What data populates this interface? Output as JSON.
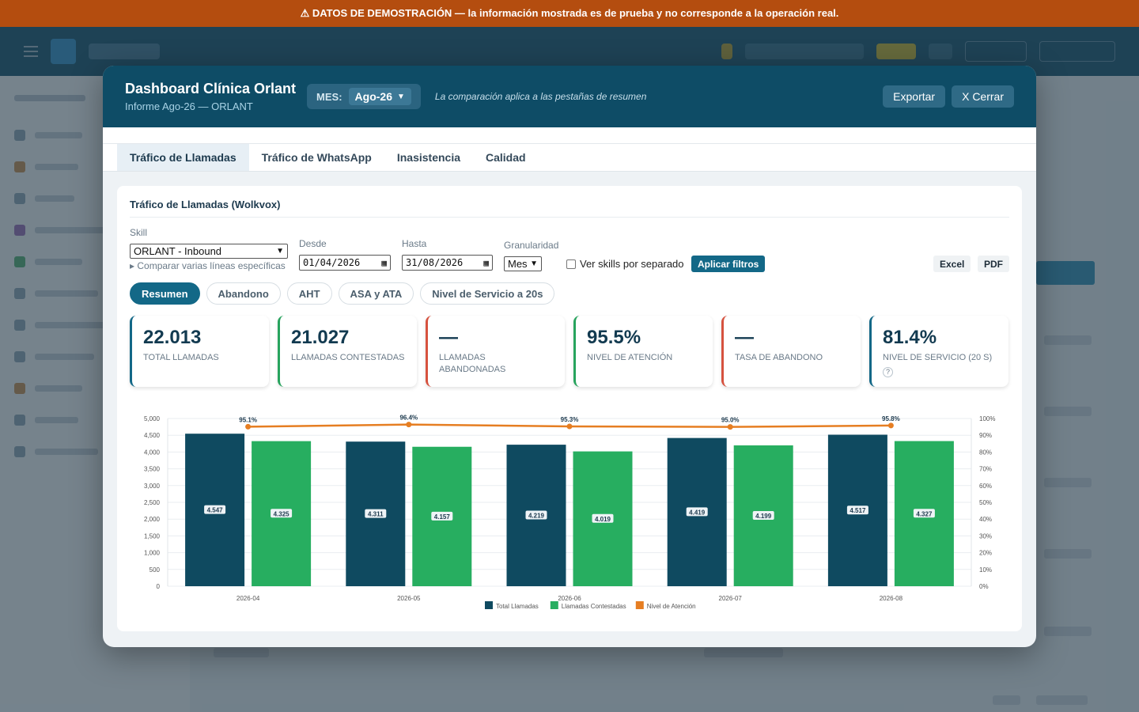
{
  "banner": {
    "text": "⚠ DATOS DE DEMOSTRACIÓN — la información mostrada es de prueba y no corresponde a la operación real."
  },
  "modal": {
    "title": "Dashboard Clínica Orlant",
    "subtitle": "Informe Ago-26 — ORLANT",
    "month_label": "MES:",
    "month_value": "Ago-26",
    "note": "La comparación aplica a las pestañas de resumen",
    "export_label": "Exportar",
    "close_label": "X Cerrar"
  },
  "tabs": [
    {
      "label": "Tráfico de Llamadas",
      "active": true
    },
    {
      "label": "Tráfico de WhatsApp",
      "active": false
    },
    {
      "label": "Inasistencia",
      "active": false
    },
    {
      "label": "Calidad",
      "active": false
    }
  ],
  "panel": {
    "title": "Tráfico de Llamadas (Wolkvox)",
    "filters": {
      "skill_label": "Skill",
      "skill_value": "ORLANT - Inbound",
      "compare_label": "▸ Comparar varias líneas específicas",
      "from_label": "Desde",
      "from_value": "01/04/2026",
      "to_label": "Hasta",
      "to_value": "31/08/2026",
      "granularity_label": "Granularidad",
      "granularity_value": "Mes",
      "separate_label": "Ver skills por separado",
      "apply_label": "Aplicar filtros",
      "excel_label": "Excel",
      "pdf_label": "PDF"
    },
    "subtabs": [
      {
        "label": "Resumen",
        "active": true
      },
      {
        "label": "Abandono",
        "active": false
      },
      {
        "label": "AHT",
        "active": false
      },
      {
        "label": "ASA y ATA",
        "active": false
      },
      {
        "label": "Nivel de Servicio a 20s",
        "active": false
      }
    ],
    "kpis": [
      {
        "value": "22.013",
        "label": "Total llamadas",
        "accent": "#136887"
      },
      {
        "value": "21.027",
        "label": "Llamadas contestadas",
        "accent": "#27a35d"
      },
      {
        "value": "—",
        "label": "Llamadas abandonadas",
        "accent": "#d6523f"
      },
      {
        "value": "95.5%",
        "label": "Nivel de atención",
        "accent": "#27a35d"
      },
      {
        "value": "—",
        "label": "Tasa de abandono",
        "accent": "#d6523f"
      },
      {
        "value": "81.4%",
        "label": "Nivel de servicio (20 s)",
        "accent": "#136887",
        "help": "?"
      }
    ]
  },
  "chart_data": {
    "type": "bar",
    "categories": [
      "2026-04",
      "2026-05",
      "2026-06",
      "2026-07",
      "2026-08"
    ],
    "series": [
      {
        "name": "Total Llamadas",
        "type": "bar",
        "axis": "left",
        "color": "#0f4a60",
        "values": [
          4547,
          4311,
          4219,
          4419,
          4517
        ],
        "labels": [
          "4.547",
          "4.311",
          "4.219",
          "4.419",
          "4.517"
        ]
      },
      {
        "name": "Llamadas Contestadas",
        "type": "bar",
        "axis": "left",
        "color": "#27ae60",
        "values": [
          4325,
          4157,
          4019,
          4199,
          4327
        ],
        "labels": [
          "4.325",
          "4.157",
          "4.019",
          "4.199",
          "4.327"
        ]
      },
      {
        "name": "Nivel de Atención",
        "type": "line",
        "axis": "right",
        "color": "#e67e22",
        "values": [
          95.1,
          96.4,
          95.3,
          95.0,
          95.8
        ],
        "labels": [
          "95.1%",
          "96.4%",
          "95.3%",
          "95.0%",
          "95.8%"
        ]
      }
    ],
    "ylim": [
      0,
      5000
    ],
    "yticks": [
      "5,000",
      "4,500",
      "4,000",
      "3,500",
      "3,000",
      "2,500",
      "2,000",
      "1,500",
      "1,000",
      "500",
      "0"
    ],
    "y2lim": [
      0,
      100
    ],
    "y2ticks": [
      "100%",
      "90%",
      "80%",
      "70%",
      "60%",
      "50%",
      "40%",
      "30%",
      "20%",
      "10%",
      "0%"
    ],
    "grid": true,
    "legend_position": "bottom"
  }
}
